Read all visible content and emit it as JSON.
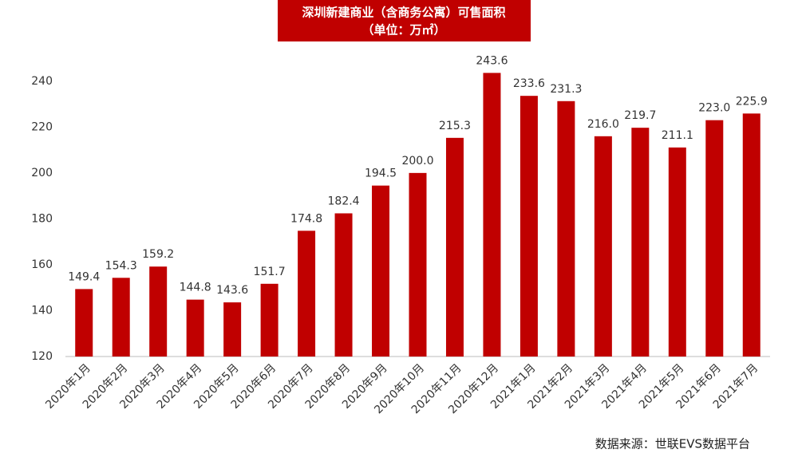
{
  "chart_data": {
    "type": "bar",
    "title": "深圳新建商业（含商务公寓）可售面积",
    "subtitle": "（单位：万㎡）",
    "source": "数据来源：世联EVS数据平台",
    "categories": [
      "2020年1月",
      "2020年2月",
      "2020年3月",
      "2020年4月",
      "2020年5月",
      "2020年6月",
      "2020年7月",
      "2020年8月",
      "2020年9月",
      "2020年10月",
      "2020年11月",
      "2020年12月",
      "2021年1月",
      "2021年2月",
      "2021年3月",
      "2021年4月",
      "2021年5月",
      "2021年6月",
      "2021年7月"
    ],
    "values": [
      149.4,
      154.3,
      159.2,
      144.8,
      143.6,
      151.7,
      174.8,
      182.4,
      194.5,
      200.0,
      215.3,
      243.6,
      233.6,
      231.3,
      216.0,
      219.7,
      211.1,
      223.0,
      225.9
    ],
    "value_labels": [
      "149.4",
      "154.3",
      "159.2",
      "144.8",
      "143.6",
      "151.7",
      "174.8",
      "182.4",
      "194.5",
      "200.0",
      "215.3",
      "243.6",
      "233.6",
      "231.3",
      "216.0",
      "219.7",
      "211.1",
      "223.0",
      "225.9"
    ],
    "color": "#c00000",
    "ylim": [
      120,
      250
    ],
    "yticks": [
      120,
      140,
      160,
      180,
      200,
      220,
      240
    ],
    "grid": false
  }
}
